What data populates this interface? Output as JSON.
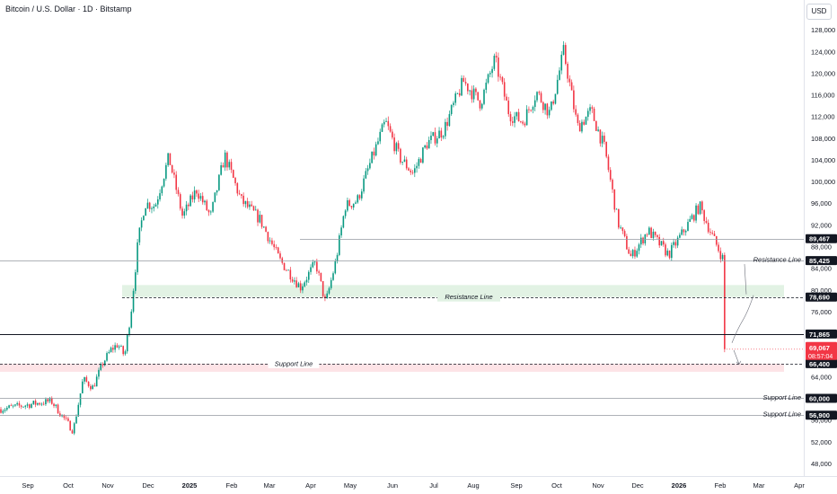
{
  "title": "Bitcoin / U.S. Dollar · 1D · Bitstamp",
  "currency_button": "USD",
  "colors": {
    "up": "#089981",
    "down": "#f23645",
    "zone_green": "#e2f2e4",
    "zone_red": "#fde3e6",
    "line": "#9598a1",
    "label_bg": "#131722",
    "price_bg": "#f23645"
  },
  "chart_data": {
    "type": "candlestick",
    "series_name": "BTC/USD",
    "x_axis": {
      "ticks": [
        "Sep",
        "Oct",
        "Nov",
        "Dec",
        "2025",
        "Feb",
        "Mar",
        "Apr",
        "May",
        "Jun",
        "Jul",
        "Aug",
        "Sep",
        "Oct",
        "Nov",
        "Dec",
        "2026",
        "Feb",
        "Mar",
        "Apr"
      ],
      "bold_ticks": [
        "2025",
        "2026"
      ]
    },
    "y_axis": {
      "range": [
        45500,
        131500
      ],
      "ticks": [
        48000,
        52000,
        56000,
        60000,
        64000,
        68000,
        72000,
        76000,
        80000,
        84000,
        88000,
        92000,
        96000,
        100000,
        104000,
        108000,
        112000,
        116000,
        120000,
        124000,
        128000
      ],
      "tick_labels": [
        "48,000",
        "52,000",
        "56,000",
        "60,000",
        "64,000",
        "68,000",
        "72,000",
        "76,000",
        "80,000",
        "84,000",
        "88,000",
        "92,000",
        "96,000",
        "100,000",
        "104,000",
        "108,000",
        "112,000",
        "116,000",
        "120,000",
        "124,000",
        "128,000"
      ]
    },
    "price_path": [
      [
        "Sep",
        58000
      ],
      [
        "Sep",
        59500
      ],
      [
        "Oct",
        54000
      ],
      [
        "Oct",
        63500
      ],
      [
        "Oct",
        62000
      ],
      [
        "Oct",
        66500
      ],
      [
        "Nov",
        69000
      ],
      [
        "Nov",
        70000
      ],
      [
        "Nov",
        67800
      ],
      [
        "Nov",
        76500
      ],
      [
        "Nov",
        89000
      ],
      [
        "Nov",
        96000
      ],
      [
        "Dec",
        95500
      ],
      [
        "Dec",
        104500
      ],
      [
        "Dec",
        93500
      ],
      [
        "2025",
        98500
      ],
      [
        "2025",
        93500
      ],
      [
        "2025",
        104800
      ],
      [
        "Feb",
        96500
      ],
      [
        "Feb",
        93000
      ],
      [
        "Mar",
        85500
      ],
      [
        "Mar",
        80500
      ],
      [
        "Apr",
        85000
      ],
      [
        "Apr",
        77500
      ],
      [
        "Apr",
        85000
      ],
      [
        "Apr",
        95500
      ],
      [
        "May",
        96500
      ],
      [
        "May",
        104000
      ],
      [
        "May",
        111000
      ],
      [
        "Jun",
        104500
      ],
      [
        "Jun",
        101500
      ],
      [
        "Jun",
        107000
      ],
      [
        "Jul",
        109500
      ],
      [
        "Jul",
        118500
      ],
      [
        "Aug",
        114500
      ],
      [
        "Aug",
        122500
      ],
      [
        "Aug",
        112500
      ],
      [
        "Sep",
        111000
      ],
      [
        "Sep",
        116500
      ],
      [
        "Sep",
        112500
      ],
      [
        "Oct",
        124000
      ],
      [
        "Oct",
        110000
      ],
      [
        "Oct",
        113000
      ],
      [
        "Nov",
        106000
      ],
      [
        "Nov",
        92500
      ],
      [
        "Nov",
        86000
      ],
      [
        "Dec",
        91000
      ],
      [
        "Dec",
        86500
      ],
      [
        "2026",
        91500
      ],
      [
        "2026",
        95500
      ],
      [
        "2026",
        89500
      ],
      [
        "Feb",
        83000
      ],
      [
        "Feb",
        69067
      ]
    ],
    "horizontal_levels": [
      {
        "price": 89467,
        "label": "89,467"
      },
      {
        "price": 85425,
        "label": "85,425"
      },
      {
        "price": 78690,
        "label": "78,690",
        "style": "dashed"
      },
      {
        "price": 71865,
        "label": "71,865",
        "style": "dark"
      },
      {
        "price": 66400,
        "label": "66,400",
        "style": "dashed"
      },
      {
        "price": 60000,
        "label": "60,000"
      },
      {
        "price": 56900,
        "label": "56,900"
      }
    ],
    "current_price": {
      "value": 69067,
      "label": "69,067",
      "countdown": "08:57:04"
    },
    "zones": [
      {
        "from": 78690,
        "to": 80900,
        "color": "green"
      },
      {
        "from": 64900,
        "to": 66400,
        "color": "red"
      }
    ],
    "annotations": [
      {
        "text": "Resistance Line",
        "price": 85425
      },
      {
        "text": "Resistance Line",
        "price": 78690
      },
      {
        "text": "Support Line",
        "price": 66400
      },
      {
        "text": "Support Line",
        "price": 60000
      },
      {
        "text": "Support Line",
        "price": 56900
      }
    ]
  }
}
